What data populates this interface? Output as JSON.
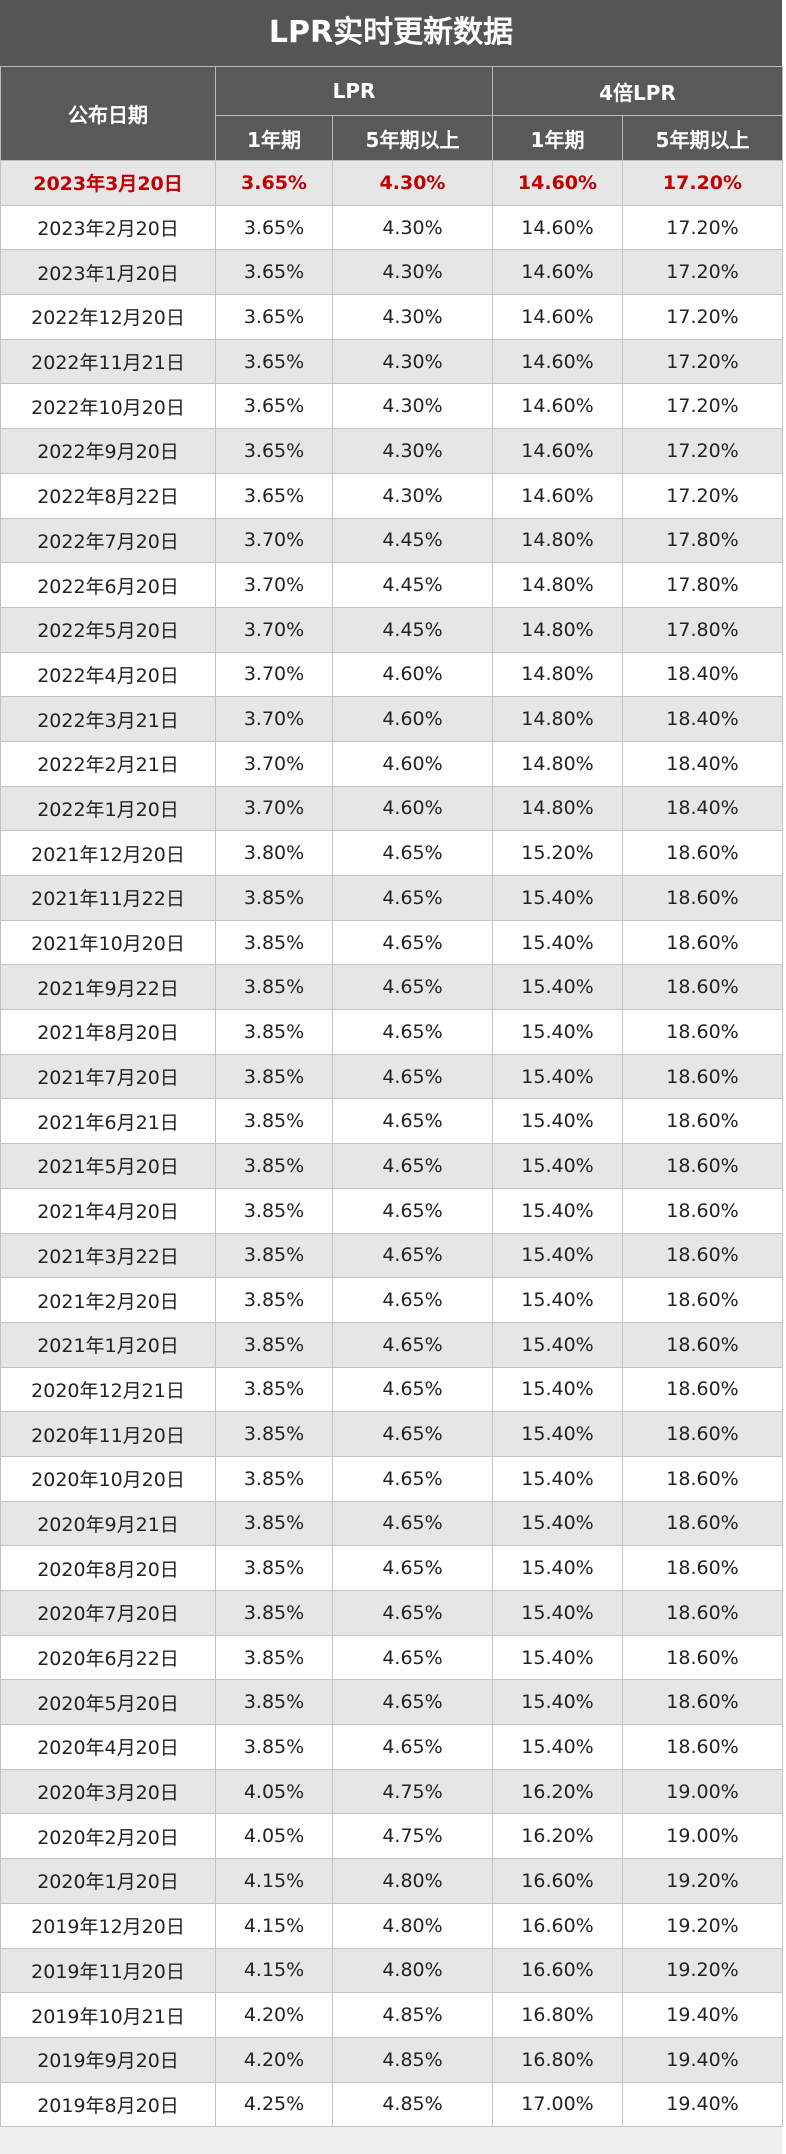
{
  "header": {
    "title": "LPR实时更新数据",
    "date_col": "公布日期",
    "group1": "LPR",
    "group2": "4倍LPR",
    "sub1": "1年期",
    "sub2": "5年期以上",
    "sub3": "1年期",
    "sub4": "5年期以上"
  },
  "table": {
    "rows": [
      [
        "2023年3月20日",
        "3.65%",
        "4.30%",
        "14.60%",
        "17.20%"
      ],
      [
        "2023年2月20日",
        "3.65%",
        "4.30%",
        "14.60%",
        "17.20%"
      ],
      [
        "2023年1月20日",
        "3.65%",
        "4.30%",
        "14.60%",
        "17.20%"
      ],
      [
        "2022年12月20日",
        "3.65%",
        "4.30%",
        "14.60%",
        "17.20%"
      ],
      [
        "2022年11月21日",
        "3.65%",
        "4.30%",
        "14.60%",
        "17.20%"
      ],
      [
        "2022年10月20日",
        "3.65%",
        "4.30%",
        "14.60%",
        "17.20%"
      ],
      [
        "2022年9月20日",
        "3.65%",
        "4.30%",
        "14.60%",
        "17.20%"
      ],
      [
        "2022年8月22日",
        "3.65%",
        "4.30%",
        "14.60%",
        "17.20%"
      ],
      [
        "2022年7月20日",
        "3.70%",
        "4.45%",
        "14.80%",
        "17.80%"
      ],
      [
        "2022年6月20日",
        "3.70%",
        "4.45%",
        "14.80%",
        "17.80%"
      ],
      [
        "2022年5月20日",
        "3.70%",
        "4.45%",
        "14.80%",
        "17.80%"
      ],
      [
        "2022年4月20日",
        "3.70%",
        "4.60%",
        "14.80%",
        "18.40%"
      ],
      [
        "2022年3月21日",
        "3.70%",
        "4.60%",
        "14.80%",
        "18.40%"
      ],
      [
        "2022年2月21日",
        "3.70%",
        "4.60%",
        "14.80%",
        "18.40%"
      ],
      [
        "2022年1月20日",
        "3.70%",
        "4.60%",
        "14.80%",
        "18.40%"
      ],
      [
        "2021年12月20日",
        "3.80%",
        "4.65%",
        "15.20%",
        "18.60%"
      ],
      [
        "2021年11月22日",
        "3.85%",
        "4.65%",
        "15.40%",
        "18.60%"
      ],
      [
        "2021年10月20日",
        "3.85%",
        "4.65%",
        "15.40%",
        "18.60%"
      ],
      [
        "2021年9月22日",
        "3.85%",
        "4.65%",
        "15.40%",
        "18.60%"
      ],
      [
        "2021年8月20日",
        "3.85%",
        "4.65%",
        "15.40%",
        "18.60%"
      ],
      [
        "2021年7月20日",
        "3.85%",
        "4.65%",
        "15.40%",
        "18.60%"
      ],
      [
        "2021年6月21日",
        "3.85%",
        "4.65%",
        "15.40%",
        "18.60%"
      ],
      [
        "2021年5月20日",
        "3.85%",
        "4.65%",
        "15.40%",
        "18.60%"
      ],
      [
        "2021年4月20日",
        "3.85%",
        "4.65%",
        "15.40%",
        "18.60%"
      ],
      [
        "2021年3月22日",
        "3.85%",
        "4.65%",
        "15.40%",
        "18.60%"
      ],
      [
        "2021年2月20日",
        "3.85%",
        "4.65%",
        "15.40%",
        "18.60%"
      ],
      [
        "2021年1月20日",
        "3.85%",
        "4.65%",
        "15.40%",
        "18.60%"
      ],
      [
        "2020年12月21日",
        "3.85%",
        "4.65%",
        "15.40%",
        "18.60%"
      ],
      [
        "2020年11月20日",
        "3.85%",
        "4.65%",
        "15.40%",
        "18.60%"
      ],
      [
        "2020年10月20日",
        "3.85%",
        "4.65%",
        "15.40%",
        "18.60%"
      ],
      [
        "2020年9月21日",
        "3.85%",
        "4.65%",
        "15.40%",
        "18.60%"
      ],
      [
        "2020年8月20日",
        "3.85%",
        "4.65%",
        "15.40%",
        "18.60%"
      ],
      [
        "2020年7月20日",
        "3.85%",
        "4.65%",
        "15.40%",
        "18.60%"
      ],
      [
        "2020年6月22日",
        "3.85%",
        "4.65%",
        "15.40%",
        "18.60%"
      ],
      [
        "2020年5月20日",
        "3.85%",
        "4.65%",
        "15.40%",
        "18.60%"
      ],
      [
        "2020年4月20日",
        "3.85%",
        "4.65%",
        "15.40%",
        "18.60%"
      ],
      [
        "2020年3月20日",
        "4.05%",
        "4.75%",
        "16.20%",
        "19.00%"
      ],
      [
        "2020年2月20日",
        "4.05%",
        "4.75%",
        "16.20%",
        "19.00%"
      ],
      [
        "2020年1月20日",
        "4.15%",
        "4.80%",
        "16.60%",
        "19.20%"
      ],
      [
        "2019年12月20日",
        "4.15%",
        "4.80%",
        "16.60%",
        "19.20%"
      ],
      [
        "2019年11月20日",
        "4.15%",
        "4.80%",
        "16.60%",
        "19.20%"
      ],
      [
        "2019年10月21日",
        "4.20%",
        "4.85%",
        "16.80%",
        "19.40%"
      ],
      [
        "2019年9月20日",
        "4.20%",
        "4.85%",
        "16.80%",
        "19.40%"
      ],
      [
        "2019年8月20日",
        "4.25%",
        "4.85%",
        "17.00%",
        "19.40%"
      ]
    ]
  }
}
